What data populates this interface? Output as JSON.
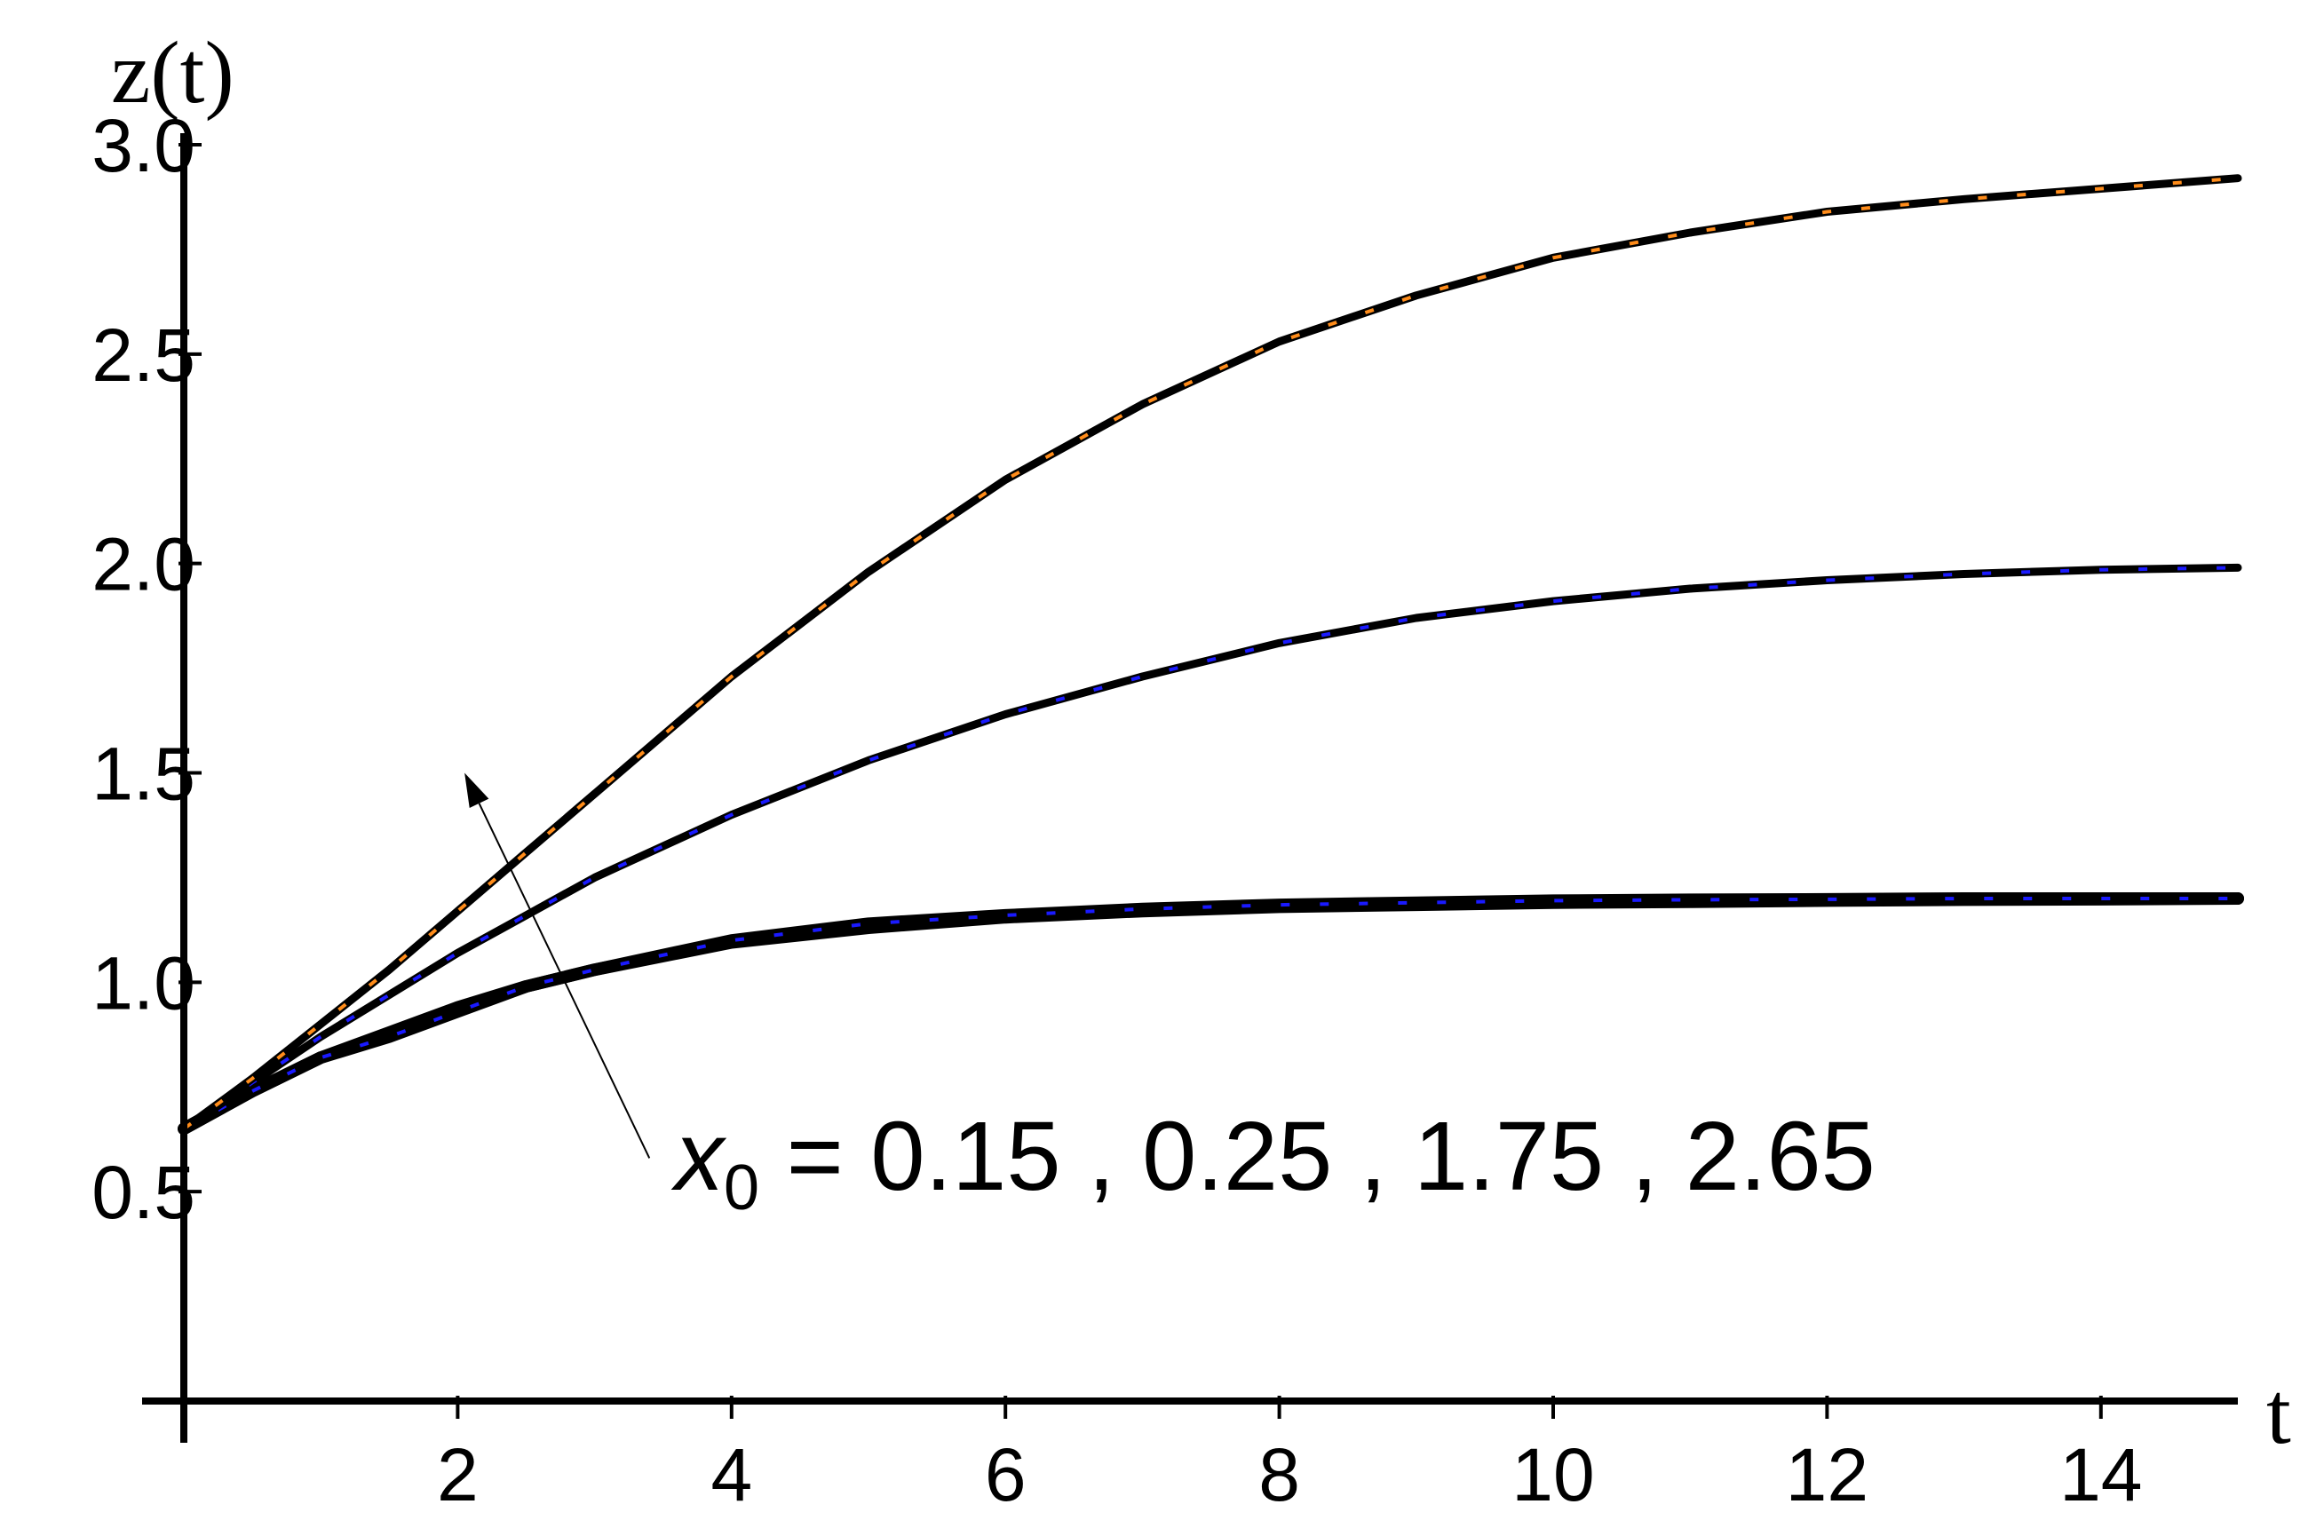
{
  "chart_data": {
    "type": "line",
    "title": "",
    "xlabel": "t",
    "ylabel": "z(t)",
    "xlim": [
      0,
      15
    ],
    "ylim": [
      0,
      3.0
    ],
    "x_ticks": [
      2,
      4,
      6,
      8,
      10,
      12,
      14
    ],
    "x_tick_labels": [
      "2",
      "4",
      "6",
      "8",
      "10",
      "12",
      "14"
    ],
    "y_ticks": [
      0.5,
      1.0,
      1.5,
      2.0,
      2.5,
      3.0
    ],
    "y_tick_labels": [
      "0.5",
      "1.0",
      "1.5",
      "2.0",
      "2.5",
      "3.0"
    ],
    "grid": false,
    "legend": "none",
    "annotation": {
      "var": "x",
      "sub": "0",
      "text": " = 0.15 , 0.25 , 1.75 , 2.65",
      "arrow_from": [
        3.4,
        0.58
      ],
      "arrow_to": [
        2.05,
        1.5
      ]
    },
    "colors": {
      "axis": "#000000",
      "orange": "#ff8c1a",
      "blue": "#1a1aff",
      "curve": "#000000"
    },
    "series": [
      {
        "x": [
          0,
          0.5,
          1,
          1.5,
          2,
          2.5,
          3,
          4,
          5,
          6,
          7,
          8,
          9,
          10,
          11,
          12,
          13,
          14,
          15
        ],
        "values": [
          0.65,
          0.74,
          0.82,
          0.88,
          0.94,
          0.99,
          1.03,
          1.095,
          1.13,
          1.155,
          1.17,
          1.18,
          1.185,
          1.19,
          1.192,
          1.195,
          1.197,
          1.198,
          1.2
        ],
        "dash_color": "#1a1aff",
        "width": 14
      },
      {
        "x": [
          0,
          0.5,
          1,
          1.5,
          2,
          2.5,
          3,
          4,
          5,
          6,
          7,
          8,
          9,
          10,
          11,
          12,
          13,
          14,
          15
        ],
        "values": [
          0.65,
          0.74,
          0.82,
          0.87,
          0.93,
          0.99,
          1.03,
          1.1,
          1.14,
          1.16,
          1.175,
          1.185,
          1.19,
          1.195,
          1.197,
          1.198,
          1.2,
          1.2,
          1.2
        ],
        "dash_color": "#1a1aff",
        "width": 14
      },
      {
        "x": [
          0,
          0.5,
          1,
          1.5,
          2,
          2.5,
          3,
          4,
          5,
          6,
          7,
          8,
          9,
          10,
          11,
          12,
          13,
          14,
          15
        ],
        "values": [
          0.65,
          0.76,
          0.87,
          0.97,
          1.07,
          1.16,
          1.25,
          1.4,
          1.53,
          1.64,
          1.73,
          1.81,
          1.87,
          1.91,
          1.94,
          1.96,
          1.975,
          1.985,
          1.99
        ],
        "dash_color": "#1a1aff",
        "width": 9
      },
      {
        "x": [
          0,
          0.5,
          1,
          1.5,
          2,
          2.5,
          3,
          4,
          5,
          6,
          7,
          8,
          9,
          10,
          11,
          12,
          13,
          14,
          15
        ],
        "values": [
          0.65,
          0.77,
          0.9,
          1.03,
          1.17,
          1.31,
          1.45,
          1.73,
          1.98,
          2.2,
          2.38,
          2.53,
          2.64,
          2.73,
          2.79,
          2.84,
          2.87,
          2.895,
          2.92
        ],
        "dash_color": "#ff8c1a",
        "width": 9
      }
    ]
  }
}
